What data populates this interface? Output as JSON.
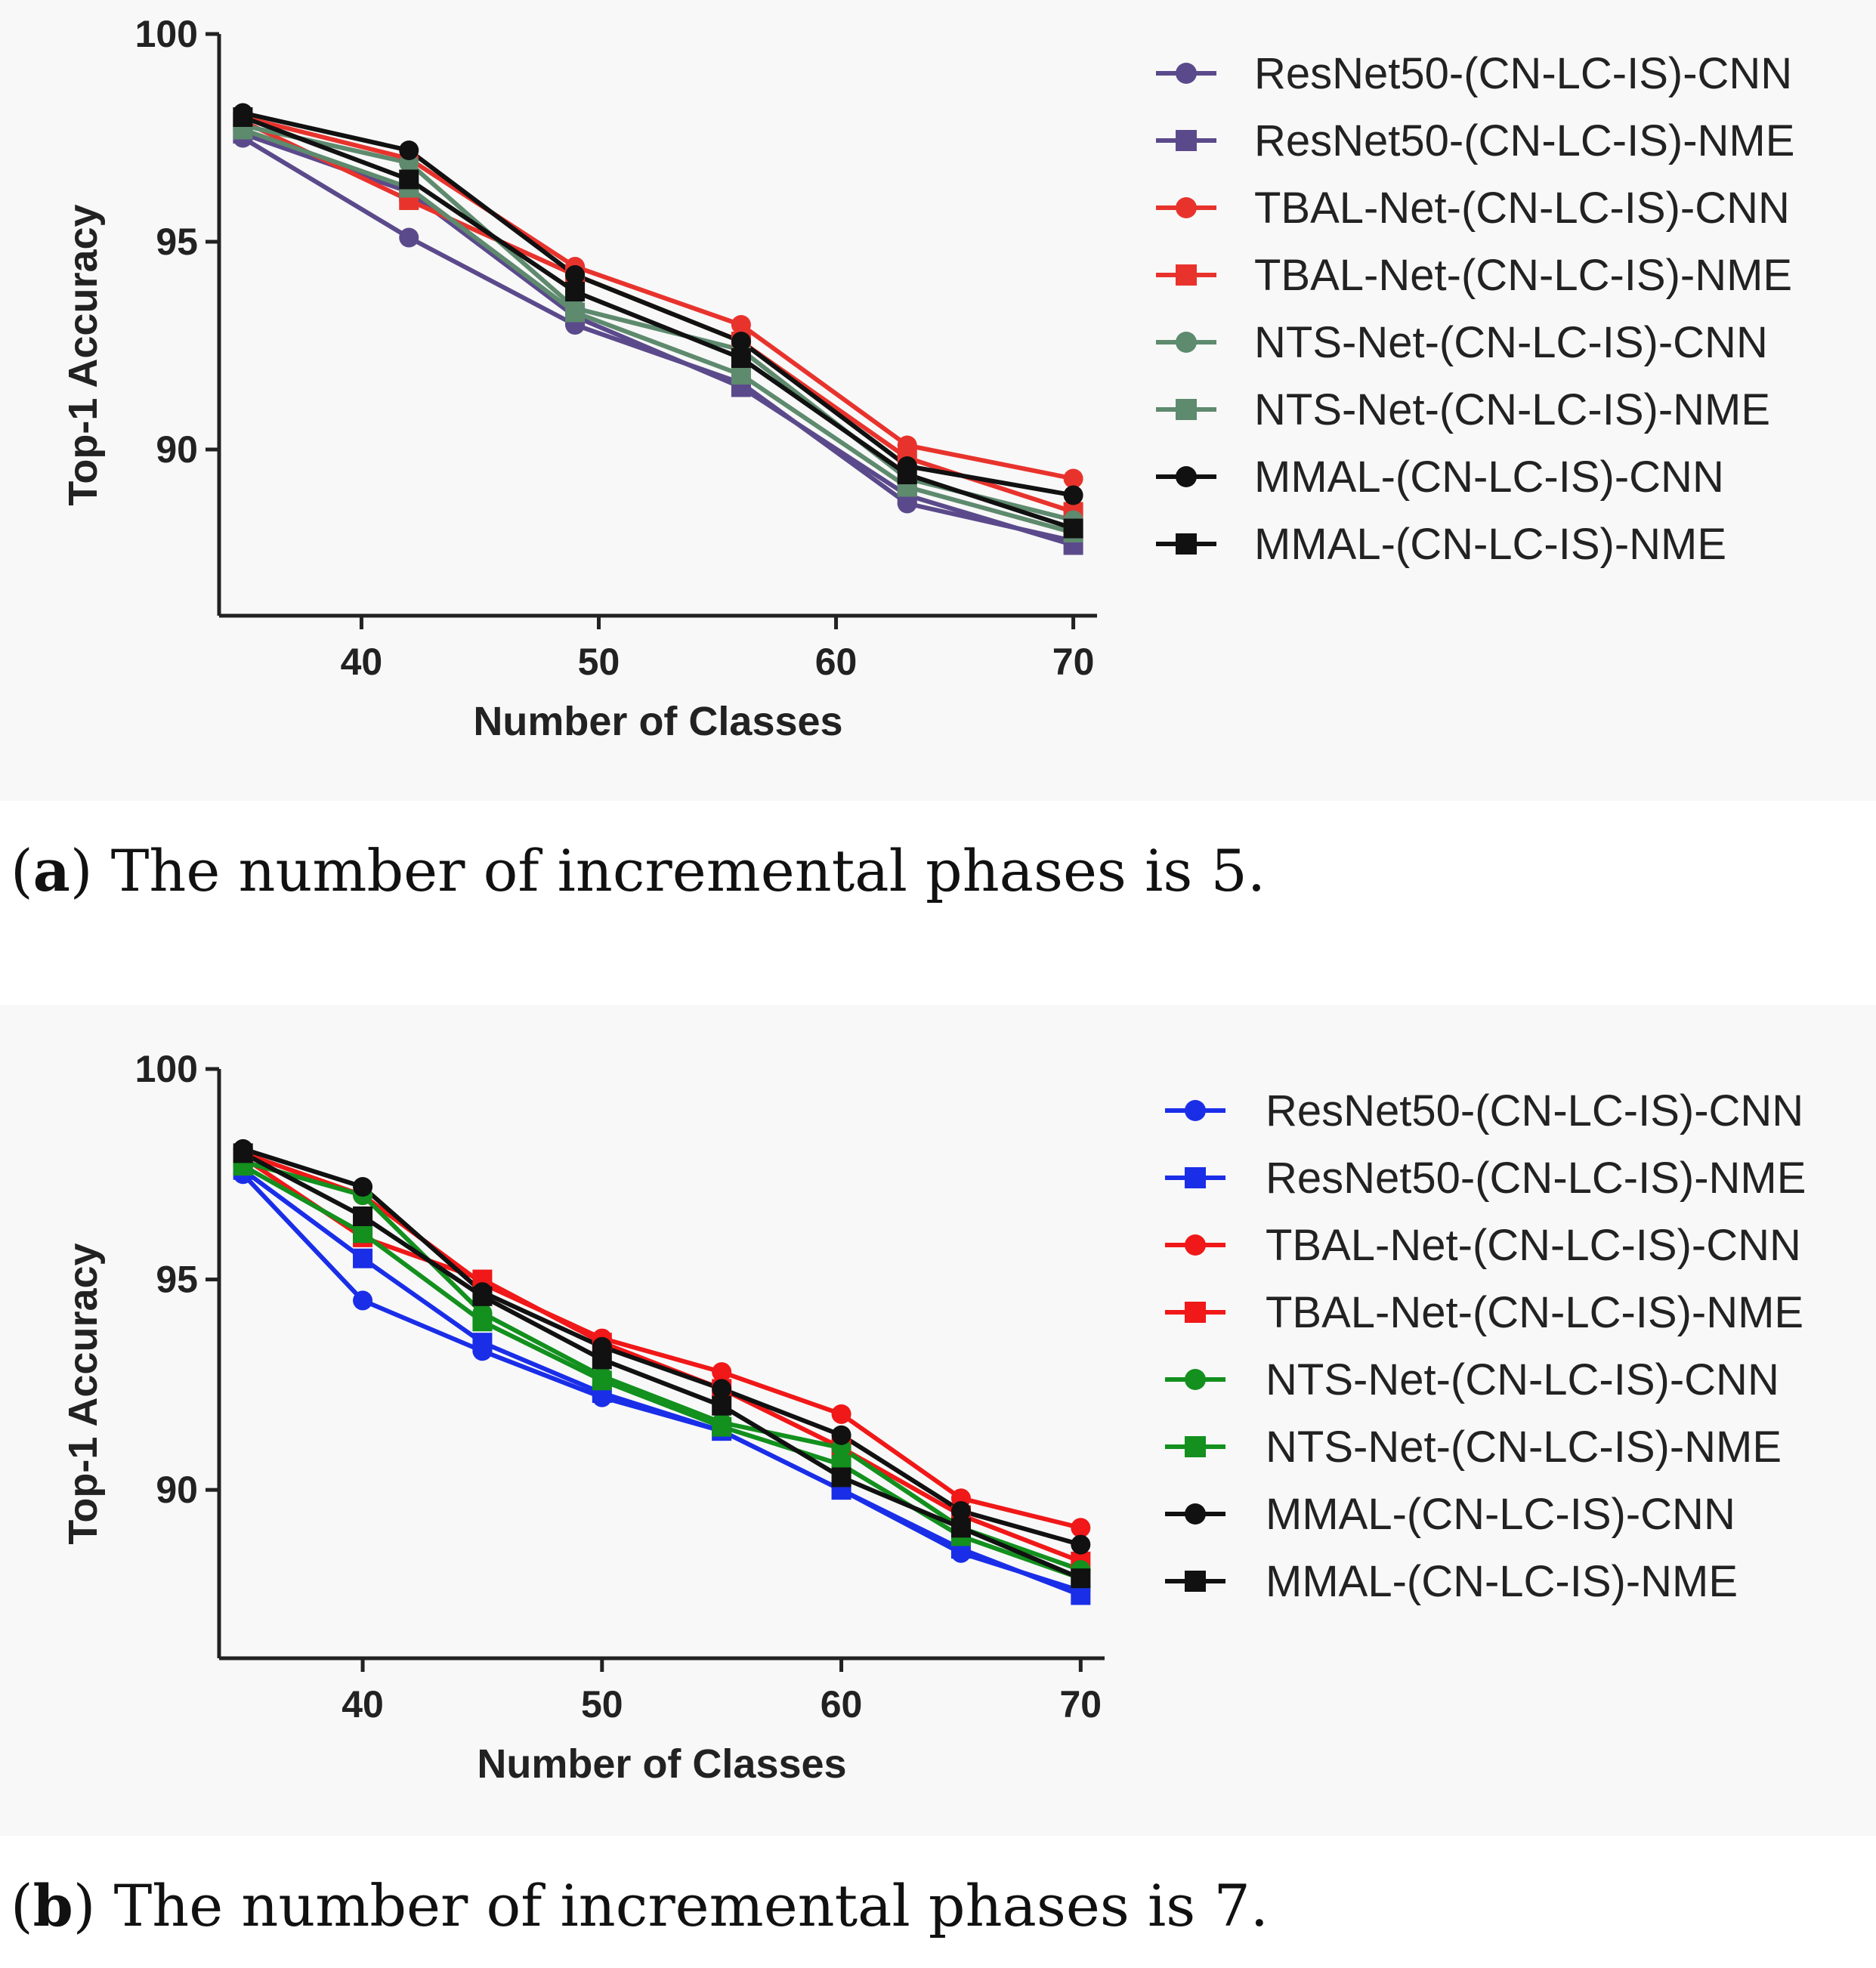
{
  "captions": [
    {
      "letter": "a",
      "text": " The number of incremental phases is 5."
    },
    {
      "letter": "b",
      "text": " The number of incremental phases is 7."
    }
  ],
  "chart_data": [
    {
      "type": "line",
      "xlabel": "Number of Classes",
      "ylabel": "Top-1 Accuracy",
      "xlim": [
        34,
        71
      ],
      "ylim": [
        86,
        100
      ],
      "xticks": [
        40,
        50,
        60,
        70
      ],
      "yticks": [
        90,
        95,
        100
      ],
      "grid": false,
      "legend_position": "right",
      "x": [
        35,
        42,
        49,
        56,
        63,
        70
      ],
      "series": [
        {
          "name": "ResNet50-(CN-LC-IS)-CNN",
          "marker": "circle",
          "color": "#5b4a8b",
          "values": [
            97.5,
            95.1,
            93.0,
            91.6,
            88.7,
            87.8
          ]
        },
        {
          "name": "ResNet50-(CN-LC-IS)-NME",
          "marker": "square",
          "color": "#5b4a8b",
          "values": [
            97.6,
            96.2,
            93.2,
            91.5,
            88.9,
            87.7
          ]
        },
        {
          "name": "TBAL-Net-(CN-LC-IS)-CNN",
          "marker": "circle",
          "color": "#e8332d",
          "values": [
            98.0,
            97.0,
            94.4,
            93.0,
            90.1,
            89.3
          ]
        },
        {
          "name": "TBAL-Net-(CN-LC-IS)-NME",
          "marker": "square",
          "color": "#e8332d",
          "values": [
            97.9,
            96.0,
            94.2,
            92.6,
            89.8,
            88.5
          ]
        },
        {
          "name": "NTS-Net-(CN-LC-IS)-CNN",
          "marker": "circle",
          "color": "#5e8a6e",
          "values": [
            97.8,
            96.9,
            93.4,
            92.4,
            89.3,
            88.3
          ]
        },
        {
          "name": "NTS-Net-(CN-LC-IS)-NME",
          "marker": "square",
          "color": "#5e8a6e",
          "values": [
            97.7,
            96.3,
            93.3,
            91.8,
            89.1,
            88.0
          ]
        },
        {
          "name": "MMAL-(CN-LC-IS)-CNN",
          "marker": "circle",
          "color": "#111111",
          "values": [
            98.1,
            97.2,
            94.2,
            92.6,
            89.6,
            88.9
          ]
        },
        {
          "name": "MMAL-(CN-LC-IS)-NME",
          "marker": "square",
          "color": "#111111",
          "values": [
            98.0,
            96.5,
            93.8,
            92.2,
            89.4,
            88.1
          ]
        }
      ]
    },
    {
      "type": "line",
      "xlabel": "Number of Classes",
      "ylabel": "Top-1 Accuracy",
      "xlim": [
        34,
        71
      ],
      "ylim": [
        86,
        100
      ],
      "xticks": [
        40,
        50,
        60,
        70
      ],
      "yticks": [
        90,
        95,
        100
      ],
      "grid": false,
      "legend_position": "right",
      "x": [
        35,
        40,
        45,
        50,
        55,
        60,
        65,
        70
      ],
      "series": [
        {
          "name": "ResNet50-(CN-LC-IS)-CNN",
          "marker": "circle",
          "color": "#1a2ee8",
          "values": [
            97.5,
            94.5,
            93.3,
            92.2,
            91.4,
            90.0,
            88.5,
            87.6
          ]
        },
        {
          "name": "ResNet50-(CN-LC-IS)-NME",
          "marker": "square",
          "color": "#1a2ee8",
          "values": [
            97.6,
            95.5,
            93.5,
            92.3,
            91.4,
            90.0,
            88.6,
            87.5
          ]
        },
        {
          "name": "TBAL-Net-(CN-LC-IS)-CNN",
          "marker": "circle",
          "color": "#f01818",
          "values": [
            98.0,
            97.0,
            94.9,
            93.6,
            92.8,
            91.8,
            89.8,
            89.1
          ]
        },
        {
          "name": "TBAL-Net-(CN-LC-IS)-NME",
          "marker": "square",
          "color": "#f01818",
          "values": [
            97.9,
            96.0,
            95.0,
            93.5,
            92.4,
            91.0,
            89.4,
            88.3
          ]
        },
        {
          "name": "NTS-Net-(CN-LC-IS)-CNN",
          "marker": "circle",
          "color": "#13901e",
          "values": [
            97.8,
            97.0,
            94.2,
            92.7,
            91.6,
            91.0,
            89.1,
            88.1
          ]
        },
        {
          "name": "NTS-Net-(CN-LC-IS)-NME",
          "marker": "square",
          "color": "#13901e",
          "values": [
            97.7,
            96.1,
            94.0,
            92.6,
            91.5,
            90.6,
            88.9,
            87.9
          ]
        },
        {
          "name": "MMAL-(CN-LC-IS)-CNN",
          "marker": "circle",
          "color": "#111111",
          "values": [
            98.1,
            97.2,
            94.7,
            93.4,
            92.4,
            91.3,
            89.5,
            88.7
          ]
        },
        {
          "name": "MMAL-(CN-LC-IS)-NME",
          "marker": "square",
          "color": "#111111",
          "values": [
            98.0,
            96.5,
            94.6,
            93.1,
            92.0,
            90.3,
            89.1,
            87.9
          ]
        }
      ]
    }
  ]
}
